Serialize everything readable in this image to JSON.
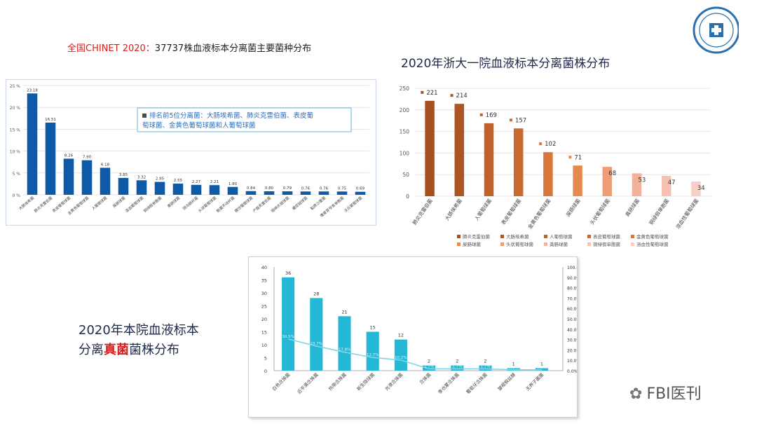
{
  "titles": {
    "chinet_prefix": "全国CHINET 2020：",
    "chinet_rest": "37737株血液标本分离菌主要菌种分布",
    "zhejiang": "2020年浙大一院血液标本分离菌株分布",
    "fungi_line1": "2020年本院血液标本",
    "fungi_line2_a": "分离",
    "fungi_line2_red": "真菌",
    "fungi_line2_b": "菌株分布"
  },
  "watermark": {
    "icon": "wechat-icon",
    "text": "FBI医刊"
  },
  "chart_data": [
    {
      "id": "chinet",
      "type": "bar",
      "ylim": [
        0,
        25
      ],
      "ytick_labels": [
        "0 %",
        "5 %",
        "10 %",
        "15 %",
        "20 %",
        "25 %"
      ],
      "categories": [
        "大肠埃希菌",
        "肺炎克雷伯菌",
        "表皮葡萄球菌",
        "金黄色葡萄球菌",
        "人葡萄球菌",
        "屎肠球菌",
        "溶血葡萄球菌",
        "铜绿假单胞菌",
        "粪肠球菌",
        "阴沟肠杆菌",
        "头状葡萄球菌",
        "鲍曼不动杆菌",
        "模仿葡萄球菌",
        "产酸克雷伯菌",
        "咽峡炎链球菌",
        "缓症链球菌",
        "黏质沙雷菌",
        "嗜麦芽窄食单胞菌",
        "沃氏葡萄球菌"
      ],
      "values": [
        23.18,
        16.51,
        8.26,
        7.9,
        6.18,
        3.85,
        3.32,
        2.95,
        2.55,
        2.27,
        2.21,
        1.8,
        0.84,
        0.8,
        0.79,
        0.76,
        0.76,
        0.75,
        0.69
      ],
      "value_labels": [
        "23.18",
        "16.51",
        "8.26",
        "7.90",
        "6.18",
        "3.85",
        "3.32",
        "2.95",
        "2.55",
        "2.27",
        "2.21",
        "1.80",
        "0.84",
        "0.80",
        "0.79",
        "0.76",
        "0.76",
        "0.75",
        "0.69"
      ],
      "annotation_line1": "排名前5位分离菌：大肠埃希菌、肺炎克雷伯菌、表皮葡",
      "annotation_line2": "萄球菌、金黄色葡萄球菌和人葡萄球菌",
      "color": "#0e5aa7",
      "grid": true
    },
    {
      "id": "zhejiang",
      "type": "bar",
      "ylim": [
        0,
        250
      ],
      "ytick_labels": [
        "0",
        "50",
        "100",
        "150",
        "200",
        "250"
      ],
      "categories": [
        "肺炎克雷伯菌",
        "大肠埃希菌",
        "人葡萄球菌",
        "表皮葡萄球菌",
        "金黄色葡萄球菌",
        "屎肠球菌",
        "头状葡萄球菌",
        "粪肠球菌",
        "铜绿假单胞菌",
        "溶血性葡萄球菌"
      ],
      "values": [
        221,
        214,
        169,
        157,
        102,
        71,
        68,
        53,
        47,
        34
      ],
      "colors": [
        "#a6501f",
        "#ae5524",
        "#c0612a",
        "#cb6a30",
        "#d9773b",
        "#e5894f",
        "#ee9e76",
        "#f2b19a",
        "#f4c1b2",
        "#f6d0c6"
      ],
      "legend": [
        "肺炎克雷伯菌",
        "大肠埃希菌",
        "人葡萄球菌",
        "表皮葡萄球菌",
        "金黄色葡萄球菌",
        "屎肠球菌",
        "头状葡萄球菌",
        "粪肠球菌",
        "铜绿假单胞菌",
        "溶血性葡萄球菌"
      ],
      "grid": true
    },
    {
      "id": "fungi",
      "type": "bar",
      "ylim": [
        0,
        40
      ],
      "ytick_labels": [
        "0",
        "5",
        "10",
        "15",
        "20",
        "25",
        "30",
        "35",
        "40"
      ],
      "y2lim": [
        0,
        100
      ],
      "y2tick_labels": [
        "0.0%",
        "10.0%",
        "20.0%",
        "30.0%",
        "40.0%",
        "50.0%",
        "60.0%",
        "70.0%",
        "80.0%",
        "90.0%",
        "100.0%"
      ],
      "categories": [
        "白色念珠菌",
        "近平滑念珠菌",
        "热带念珠菌",
        "新生隐球菌",
        "光滑念珠菌",
        "念珠菌",
        "季也蒙念珠菌",
        "葡萄牙念珠菌",
        "皱褶假丝酵",
        "无养子菌菌"
      ],
      "values": [
        36,
        28,
        21,
        15,
        12,
        2,
        2,
        2,
        1,
        1
      ],
      "line_series": {
        "values_pct": [
          30.5,
          23.7,
          17.8,
          12.7,
          10.2,
          1.7,
          1.7,
          1.7,
          0.8,
          0.8
        ],
        "labels": [
          "30.5%",
          "23.7%",
          "17.8%",
          "12.7%",
          "10.2%",
          "1.7%",
          "1.7%",
          "1.7%",
          "0.8%",
          "0.8%"
        ]
      },
      "bar_color": "#25b8d6",
      "line_color": "#7fd6e6"
    }
  ]
}
